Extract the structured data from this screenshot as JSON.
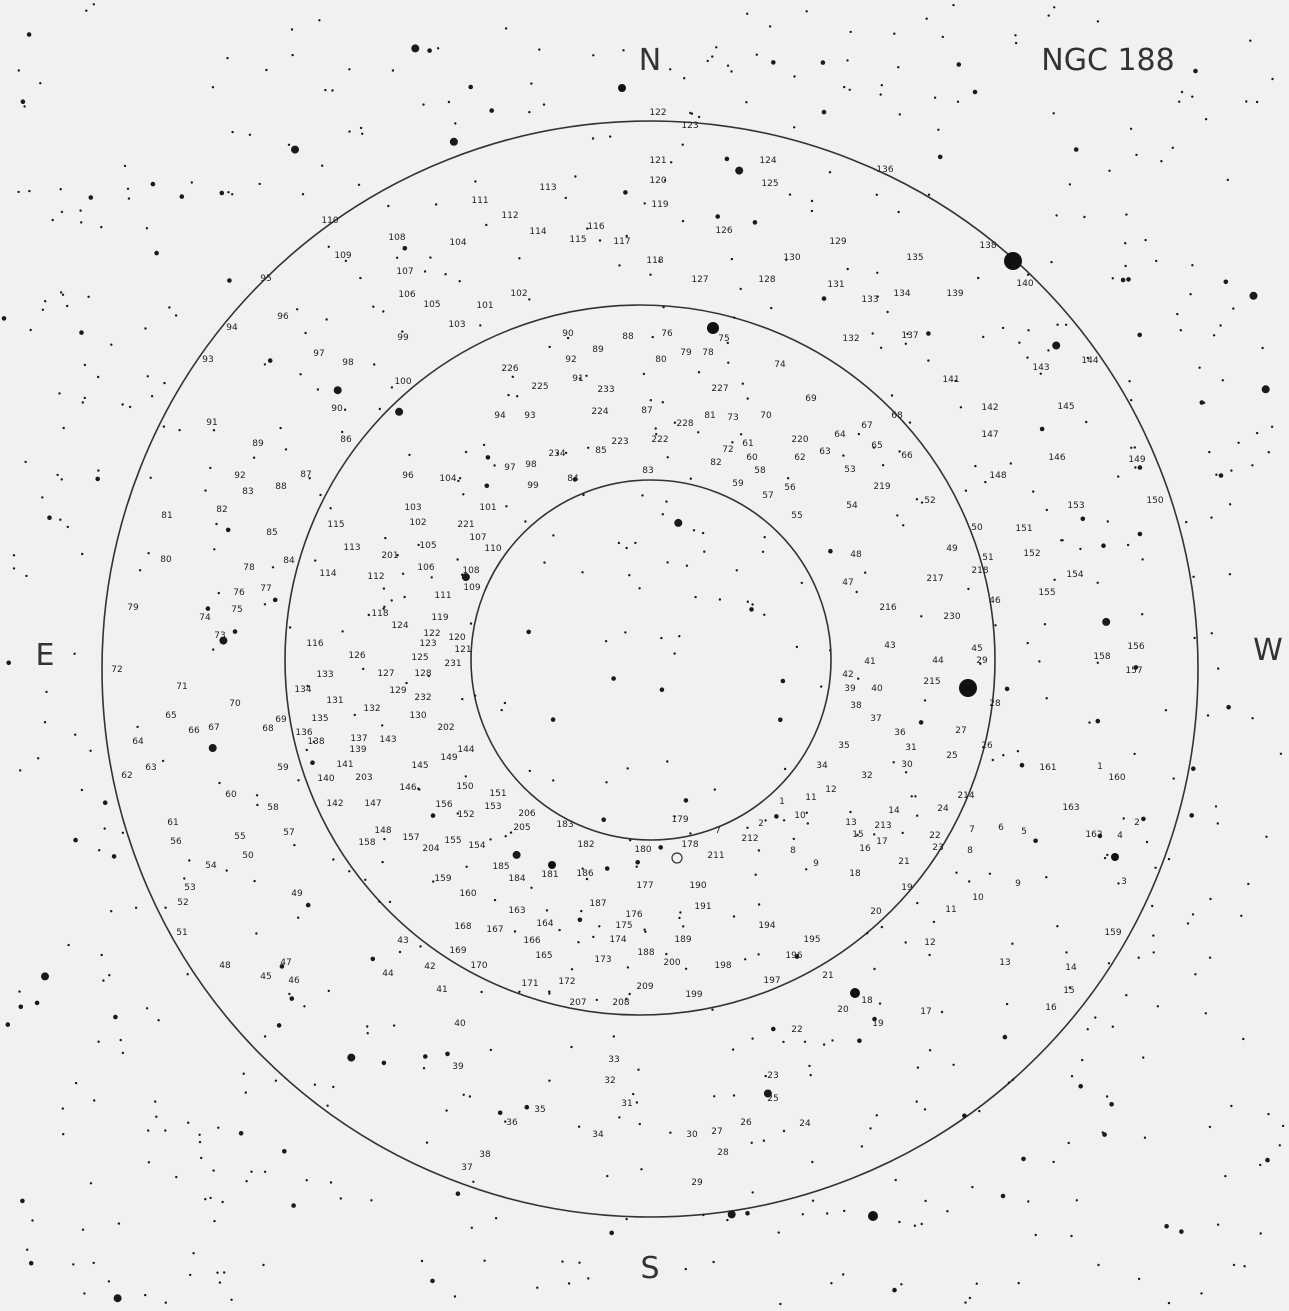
{
  "header": {
    "title": "NGC 188"
  },
  "directions": {
    "north": "N",
    "south": "S",
    "east": "E",
    "west": "W"
  },
  "star_labels": [
    "122",
    "123",
    "121",
    "120",
    "124",
    "125",
    "136",
    "119",
    "126",
    "129",
    "130",
    "131",
    "128",
    "127",
    "138",
    "140",
    "135",
    "134",
    "139",
    "133",
    "137",
    "132",
    "113",
    "111",
    "112",
    "114",
    "116",
    "115",
    "117",
    "118",
    "110",
    "108",
    "109",
    "104",
    "107",
    "106",
    "105",
    "102",
    "101",
    "103",
    "95",
    "96",
    "94",
    "93",
    "97",
    "98",
    "99",
    "100",
    "91",
    "90",
    "86",
    "89",
    "87",
    "88",
    "92",
    "83",
    "82",
    "81",
    "80",
    "85",
    "84",
    "78",
    "76",
    "77",
    "75",
    "79",
    "74",
    "73",
    "72",
    "71",
    "70",
    "65",
    "66",
    "67",
    "68",
    "69",
    "64",
    "63",
    "62",
    "59",
    "60",
    "58",
    "57",
    "61",
    "56",
    "55",
    "54",
    "50",
    "53",
    "52",
    "49",
    "51",
    "48",
    "47",
    "45",
    "46",
    "43",
    "44",
    "42",
    "41",
    "40",
    "39",
    "33",
    "32",
    "31",
    "35",
    "36",
    "34",
    "30",
    "27",
    "28",
    "29",
    "26",
    "24",
    "25",
    "23",
    "22",
    "38",
    "37",
    "18",
    "20",
    "19",
    "17",
    "16",
    "15",
    "14",
    "13",
    "12",
    "11",
    "10",
    "9",
    "21",
    "23",
    "22",
    "8",
    "7",
    "6",
    "5",
    "4",
    "3",
    "2",
    "1",
    "160",
    "163",
    "162",
    "161",
    "159",
    "158",
    "156",
    "157",
    "155",
    "154",
    "153",
    "152",
    "151",
    "150",
    "149",
    "148",
    "147",
    "146",
    "145",
    "143",
    "144",
    "142",
    "141",
    "90",
    "89",
    "88",
    "76",
    "79",
    "78",
    "80",
    "75",
    "74",
    "226",
    "92",
    "91",
    "225",
    "233",
    "227",
    "69",
    "94",
    "93",
    "224",
    "87",
    "228",
    "81",
    "73",
    "70",
    "68",
    "67",
    "64",
    "65",
    "66",
    "72",
    "61",
    "60",
    "58",
    "59",
    "220",
    "62",
    "63",
    "223",
    "222",
    "234",
    "85",
    "84",
    "83",
    "82",
    "57",
    "56",
    "55",
    "53",
    "54",
    "219",
    "52",
    "97",
    "98",
    "99",
    "96",
    "104",
    "103",
    "101",
    "102",
    "221",
    "107",
    "105",
    "110",
    "108",
    "106",
    "109",
    "111",
    "115",
    "113",
    "201",
    "114",
    "112",
    "50",
    "49",
    "51",
    "218",
    "48",
    "217",
    "47",
    "46",
    "216",
    "230",
    "118",
    "119",
    "124",
    "122",
    "120",
    "123",
    "121",
    "116",
    "126",
    "125",
    "127",
    "128",
    "231",
    "129",
    "232",
    "133",
    "134",
    "131",
    "132",
    "130",
    "202",
    "135",
    "136",
    "137",
    "138",
    "139",
    "143",
    "144",
    "141",
    "140",
    "203",
    "145",
    "149",
    "146",
    "142",
    "147",
    "150",
    "151",
    "156",
    "152",
    "153",
    "206",
    "205",
    "148",
    "157",
    "155",
    "154",
    "204",
    "158",
    "159",
    "183",
    "182",
    "181",
    "186",
    "185",
    "184",
    "180",
    "178",
    "179",
    "211",
    "177",
    "190",
    "187",
    "191",
    "176",
    "175",
    "174",
    "188",
    "189",
    "200",
    "173",
    "160",
    "163",
    "164",
    "168",
    "167",
    "166",
    "169",
    "165",
    "170",
    "172",
    "171",
    "209",
    "207",
    "208",
    "199",
    "198",
    "194",
    "195",
    "196",
    "197",
    "21",
    "1",
    "2",
    "7",
    "212",
    "8",
    "9",
    "10",
    "11",
    "12",
    "13",
    "15",
    "16",
    "17",
    "14",
    "213",
    "214",
    "24",
    "18",
    "19",
    "20",
    "34",
    "32",
    "35",
    "30",
    "31",
    "36",
    "37",
    "38",
    "27",
    "26",
    "25",
    "28",
    "29",
    "45",
    "44",
    "215",
    "41",
    "42",
    "43",
    "39",
    "40"
  ]
}
